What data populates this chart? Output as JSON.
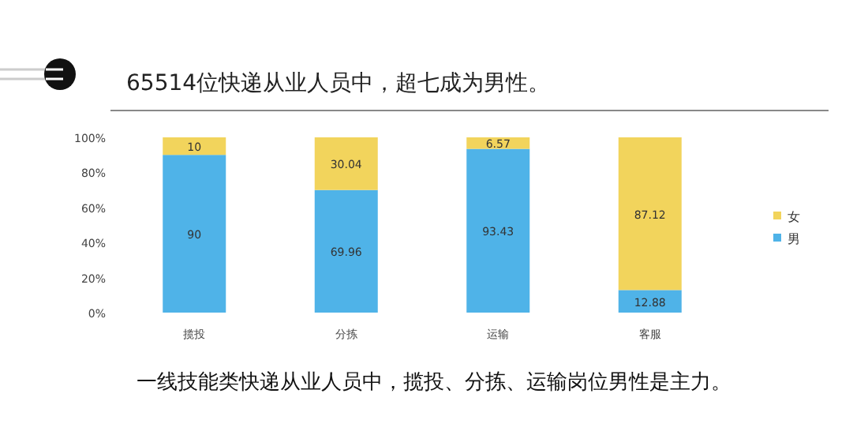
{
  "chart_data": {
    "type": "bar",
    "stacked": true,
    "title": "65514位快递从业人员中，超七成为男性。",
    "annotations": [
      "一线技能类快递从业人员中，揽投、分拣、运输岗位男性是主力。"
    ],
    "categories": [
      "揽投",
      "分拣",
      "运输",
      "客服"
    ],
    "series": [
      {
        "name": "男",
        "color": "#4fb3e8",
        "values": [
          90,
          69.96,
          93.43,
          12.88
        ]
      },
      {
        "name": "女",
        "color": "#f2d45c",
        "values": [
          10,
          30.04,
          6.57,
          87.12
        ]
      }
    ],
    "ylim": [
      0,
      100
    ],
    "yticks": [
      {
        "value": 0,
        "label": "0%"
      },
      {
        "value": 20,
        "label": "20%"
      },
      {
        "value": 40,
        "label": "40%"
      },
      {
        "value": 60,
        "label": "60%"
      },
      {
        "value": 80,
        "label": "80%"
      },
      {
        "value": 100,
        "label": "100%"
      }
    ],
    "data_labels": true,
    "legend": "right",
    "grid": false
  }
}
